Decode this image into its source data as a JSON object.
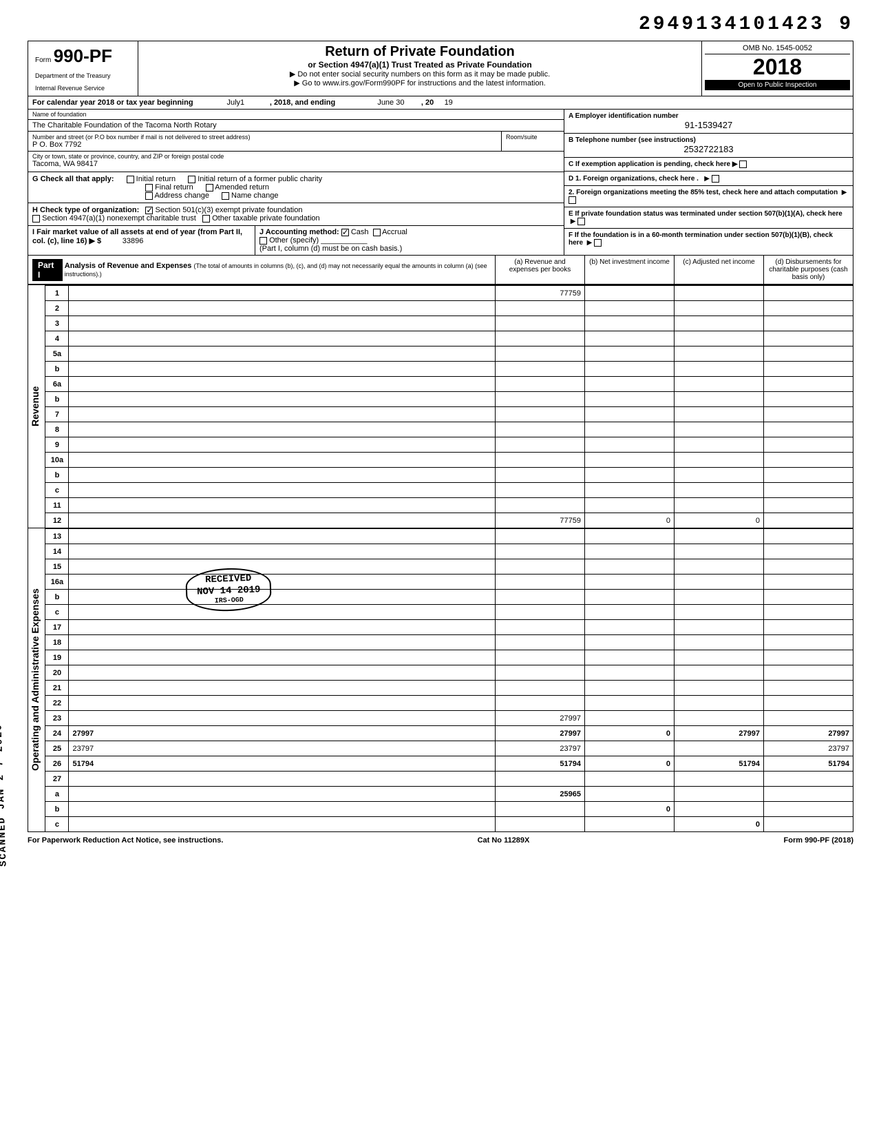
{
  "top_id": "2949134101423 9",
  "form": {
    "label": "Form",
    "number": "990-PF",
    "dept1": "Department of the Treasury",
    "dept2": "Internal Revenue Service"
  },
  "title": {
    "main": "Return of Private Foundation",
    "sub": "or Section 4947(a)(1) Trust Treated as Private Foundation",
    "note1": "▶ Do not enter social security numbers on this form as it may be made public.",
    "note2": "▶ Go to www.irs.gov/Form990PF for instructions and the latest information."
  },
  "year_box": {
    "omb": "OMB No. 1545-0052",
    "year": "2018",
    "inspect": "Open to Public Inspection"
  },
  "calendar": {
    "text_prefix": "For calendar year 2018 or tax year beginning",
    "begin": "July1",
    "mid": ", 2018, and ending",
    "end_month": "June 30",
    "end_year_prefix": ", 20",
    "end_year": "19"
  },
  "foundation": {
    "name_label": "Name of foundation",
    "name": "The Charitable Foundation of the Tacoma North Rotary",
    "addr_label": "Number and street (or P.O box number if mail is not delivered to street address)",
    "addr": "P O. Box 7792",
    "room_label": "Room/suite",
    "room": "",
    "city_label": "City or town, state or province, country, and ZIP or foreign postal code",
    "city": "Tacoma, WA 98417"
  },
  "ein": {
    "label": "A  Employer identification number",
    "value": "91-1539427"
  },
  "phone": {
    "label": "B  Telephone number (see instructions)",
    "value": "2532722183"
  },
  "c_line": "C  If exemption application is pending, check here ▶",
  "d_section": {
    "d1": "D  1. Foreign organizations, check here .",
    "d2": "2. Foreign organizations meeting the 85% test, check here and attach computation",
    "e": "E  If private foundation status was terminated under section 507(b)(1)(A), check here",
    "f": "F  If the foundation is in a 60-month termination under section 507(b)(1)(B), check here"
  },
  "g": {
    "label": "G  Check all that apply:",
    "opts": [
      "Initial return",
      "Final return",
      "Address change",
      "Initial return of a former public charity",
      "Amended return",
      "Name change"
    ]
  },
  "h": {
    "label": "H  Check type of organization:",
    "opt1": "Section 501(c)(3) exempt private foundation",
    "opt2": "Section 4947(a)(1) nonexempt charitable trust",
    "opt3": "Other taxable private foundation"
  },
  "i": {
    "label": "I   Fair market value of all assets at end of year  (from Part II, col. (c), line 16) ▶ $",
    "value": "33896"
  },
  "j": {
    "label": "J  Accounting method:",
    "cash": "Cash",
    "accrual": "Accrual",
    "other": "Other (specify)",
    "note": "(Part I, column (d) must be on cash basis.)"
  },
  "part1": {
    "header": "Part I",
    "title": "Analysis of Revenue and Expenses",
    "title_note": "(The total of amounts in columns (b), (c), and (d) may not necessarily equal the amounts in column (a) (see instructions).)",
    "col_a": "(a) Revenue and expenses per books",
    "col_b": "(b) Net investment income",
    "col_c": "(c) Adjusted net income",
    "col_d": "(d) Disbursements for charitable purposes (cash basis only)"
  },
  "side_labels": {
    "revenue": "Revenue",
    "expenses": "Operating and Administrative Expenses"
  },
  "lines": [
    {
      "n": "1",
      "d": "",
      "a": "77759",
      "b": "",
      "c": ""
    },
    {
      "n": "2",
      "d": "",
      "a": "",
      "b": "",
      "c": ""
    },
    {
      "n": "3",
      "d": "",
      "a": "",
      "b": "",
      "c": ""
    },
    {
      "n": "4",
      "d": "",
      "a": "",
      "b": "",
      "c": ""
    },
    {
      "n": "5a",
      "d": "",
      "a": "",
      "b": "",
      "c": ""
    },
    {
      "n": "b",
      "d": "",
      "a": "",
      "b": "",
      "c": ""
    },
    {
      "n": "6a",
      "d": "",
      "a": "",
      "b": "",
      "c": ""
    },
    {
      "n": "b",
      "d": "",
      "a": "",
      "b": "",
      "c": ""
    },
    {
      "n": "7",
      "d": "",
      "a": "",
      "b": "",
      "c": ""
    },
    {
      "n": "8",
      "d": "",
      "a": "",
      "b": "",
      "c": ""
    },
    {
      "n": "9",
      "d": "",
      "a": "",
      "b": "",
      "c": ""
    },
    {
      "n": "10a",
      "d": "",
      "a": "",
      "b": "",
      "c": ""
    },
    {
      "n": "b",
      "d": "",
      "a": "",
      "b": "",
      "c": ""
    },
    {
      "n": "c",
      "d": "",
      "a": "",
      "b": "",
      "c": ""
    },
    {
      "n": "11",
      "d": "",
      "a": "",
      "b": "",
      "c": ""
    },
    {
      "n": "12",
      "d": "",
      "a": "77759",
      "b": "0",
      "c": "0",
      "bold": true
    }
  ],
  "exp_lines": [
    {
      "n": "13",
      "d": "",
      "a": "",
      "b": "",
      "c": ""
    },
    {
      "n": "14",
      "d": "",
      "a": "",
      "b": "",
      "c": ""
    },
    {
      "n": "15",
      "d": "",
      "a": "",
      "b": "",
      "c": ""
    },
    {
      "n": "16a",
      "d": "",
      "a": "",
      "b": "",
      "c": ""
    },
    {
      "n": "b",
      "d": "",
      "a": "",
      "b": "",
      "c": ""
    },
    {
      "n": "c",
      "d": "",
      "a": "",
      "b": "",
      "c": ""
    },
    {
      "n": "17",
      "d": "",
      "a": "",
      "b": "",
      "c": ""
    },
    {
      "n": "18",
      "d": "",
      "a": "",
      "b": "",
      "c": ""
    },
    {
      "n": "19",
      "d": "",
      "a": "",
      "b": "",
      "c": ""
    },
    {
      "n": "20",
      "d": "",
      "a": "",
      "b": "",
      "c": ""
    },
    {
      "n": "21",
      "d": "",
      "a": "",
      "b": "",
      "c": ""
    },
    {
      "n": "22",
      "d": "",
      "a": "",
      "b": "",
      "c": ""
    },
    {
      "n": "23",
      "d": "",
      "a": "27997",
      "b": "",
      "c": ""
    },
    {
      "n": "24",
      "d": "27997",
      "a": "27997",
      "b": "0",
      "c": "27997",
      "bold": true
    },
    {
      "n": "25",
      "d": "23797",
      "a": "23797",
      "b": "",
      "c": ""
    },
    {
      "n": "26",
      "d": "51794",
      "a": "51794",
      "b": "0",
      "c": "51794",
      "bold": true
    },
    {
      "n": "27",
      "d": "",
      "a": "",
      "b": "",
      "c": ""
    },
    {
      "n": "a",
      "d": "",
      "a": "25965",
      "b": "",
      "c": "",
      "bold": true
    },
    {
      "n": "b",
      "d": "",
      "a": "",
      "b": "0",
      "c": "",
      "bold": true
    },
    {
      "n": "c",
      "d": "",
      "a": "",
      "b": "",
      "c": "0",
      "bold": true
    }
  ],
  "stamps": {
    "received": "RECEIVED",
    "received_date": "NOV 14 2019",
    "received_loc": "IRS-OGD",
    "scanned": "SCANNED  JAN 2 7 2020"
  },
  "footer": {
    "left": "For Paperwork Reduction Act Notice, see instructions.",
    "mid": "Cat No 11289X",
    "right": "Form 990-PF (2018)"
  }
}
